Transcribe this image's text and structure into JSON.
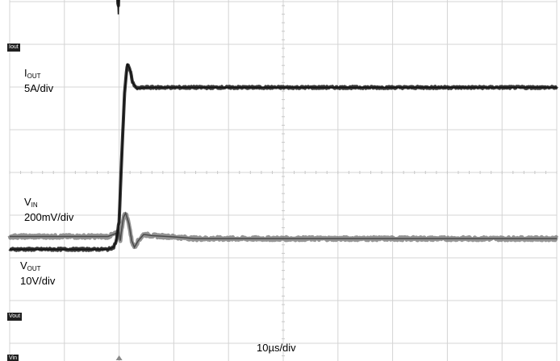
{
  "chart_data": {
    "type": "line",
    "title": "",
    "xlabel": "10µs/div",
    "x_unit": "µs",
    "x_range": [
      -20,
      80
    ],
    "divisions": {
      "horizontal": 10,
      "vertical": 8
    },
    "trigger_time_us": 0,
    "grid": true,
    "series": [
      {
        "name": "IOUT",
        "marker_label": "Iout",
        "label_main": "I",
        "label_sub": "OUT",
        "scale": "5A/div",
        "ground_div": 6.1,
        "color": "#222222",
        "points": [
          [
            -20,
            0
          ],
          [
            -1.2,
            0
          ],
          [
            -0.5,
            -1.2
          ],
          [
            -0.15,
            -2.4
          ],
          [
            0.1,
            -1.2
          ],
          [
            0.6,
            0
          ],
          [
            80,
            0
          ]
        ]
      },
      {
        "name": "VIN",
        "marker_label": "Vin",
        "label_main": "V",
        "label_sub": "IN",
        "scale": "200mV/div",
        "ground_div": -1.5,
        "color": "#6f6f6f",
        "points": [
          [
            -20,
            0
          ],
          [
            -2,
            0
          ],
          [
            0,
            0.1
          ],
          [
            0.2,
            -0.1
          ],
          [
            0.5,
            0.2
          ],
          [
            0.8,
            0.45
          ],
          [
            1.2,
            0.55
          ],
          [
            1.8,
            0.3
          ],
          [
            2.3,
            -0.1
          ],
          [
            2.8,
            -0.25
          ],
          [
            3.5,
            -0.1
          ],
          [
            4.5,
            0.05
          ],
          [
            6,
            0.02
          ],
          [
            10,
            -0.01
          ],
          [
            14,
            -0.05
          ],
          [
            80,
            -0.05
          ]
        ]
      },
      {
        "name": "VOUT",
        "marker_label": "Vout",
        "label_main": "V",
        "label_sub": "OUT",
        "scale": "10V/div",
        "ground_div": -1.95,
        "color": "#222222",
        "points": [
          [
            -20,
            0.15
          ],
          [
            -2,
            0.15
          ],
          [
            -1,
            0.2
          ],
          [
            -0.5,
            0.35
          ],
          [
            0,
            0.8
          ],
          [
            0.5,
            2.4
          ],
          [
            1,
            3.8
          ],
          [
            1.5,
            4.5
          ],
          [
            2,
            4.35
          ],
          [
            2.5,
            4.05
          ],
          [
            3.2,
            3.92
          ],
          [
            4,
            3.93
          ],
          [
            5,
            3.94
          ],
          [
            80,
            3.94
          ]
        ]
      }
    ]
  }
}
